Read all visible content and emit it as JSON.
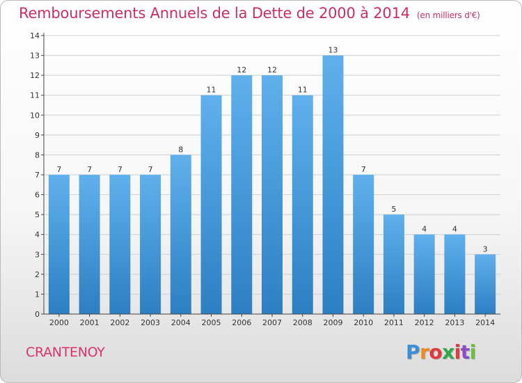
{
  "title": "Remboursements Annuels de la Dette de 2000 à 2014",
  "unit": "(en milliers d'€)",
  "commune": "CRANTENOY",
  "logo": {
    "letters": [
      "P",
      "r",
      "o",
      "x",
      "i",
      "t",
      "i"
    ],
    "colors": [
      "#3a8fd6",
      "#f08a1c",
      "#e03a3a",
      "#2fa84a",
      "#e03a3a",
      "#8a4fc8",
      "#6cc13c"
    ]
  },
  "colors": {
    "bar_top": "#5fb0ec",
    "bar_bottom": "#2d7fc2",
    "grid": "#cfcfcf",
    "axis": "#444444",
    "text": "#333333"
  },
  "chart_data": {
    "type": "bar",
    "categories": [
      "2000",
      "2001",
      "2002",
      "2003",
      "2004",
      "2005",
      "2006",
      "2007",
      "2008",
      "2009",
      "2010",
      "2011",
      "2012",
      "2013",
      "2014"
    ],
    "values": [
      7,
      7,
      7,
      7,
      8,
      11,
      12,
      12,
      11,
      13,
      7,
      5,
      4,
      4,
      3
    ],
    "title": "Remboursements Annuels de la Dette de 2000 à 2014",
    "xlabel": "",
    "ylabel": "",
    "ylim": [
      0,
      14
    ],
    "yticks": [
      0,
      1,
      2,
      3,
      4,
      5,
      6,
      7,
      8,
      9,
      10,
      11,
      12,
      13,
      14
    ],
    "grid": true,
    "legend": "none"
  }
}
